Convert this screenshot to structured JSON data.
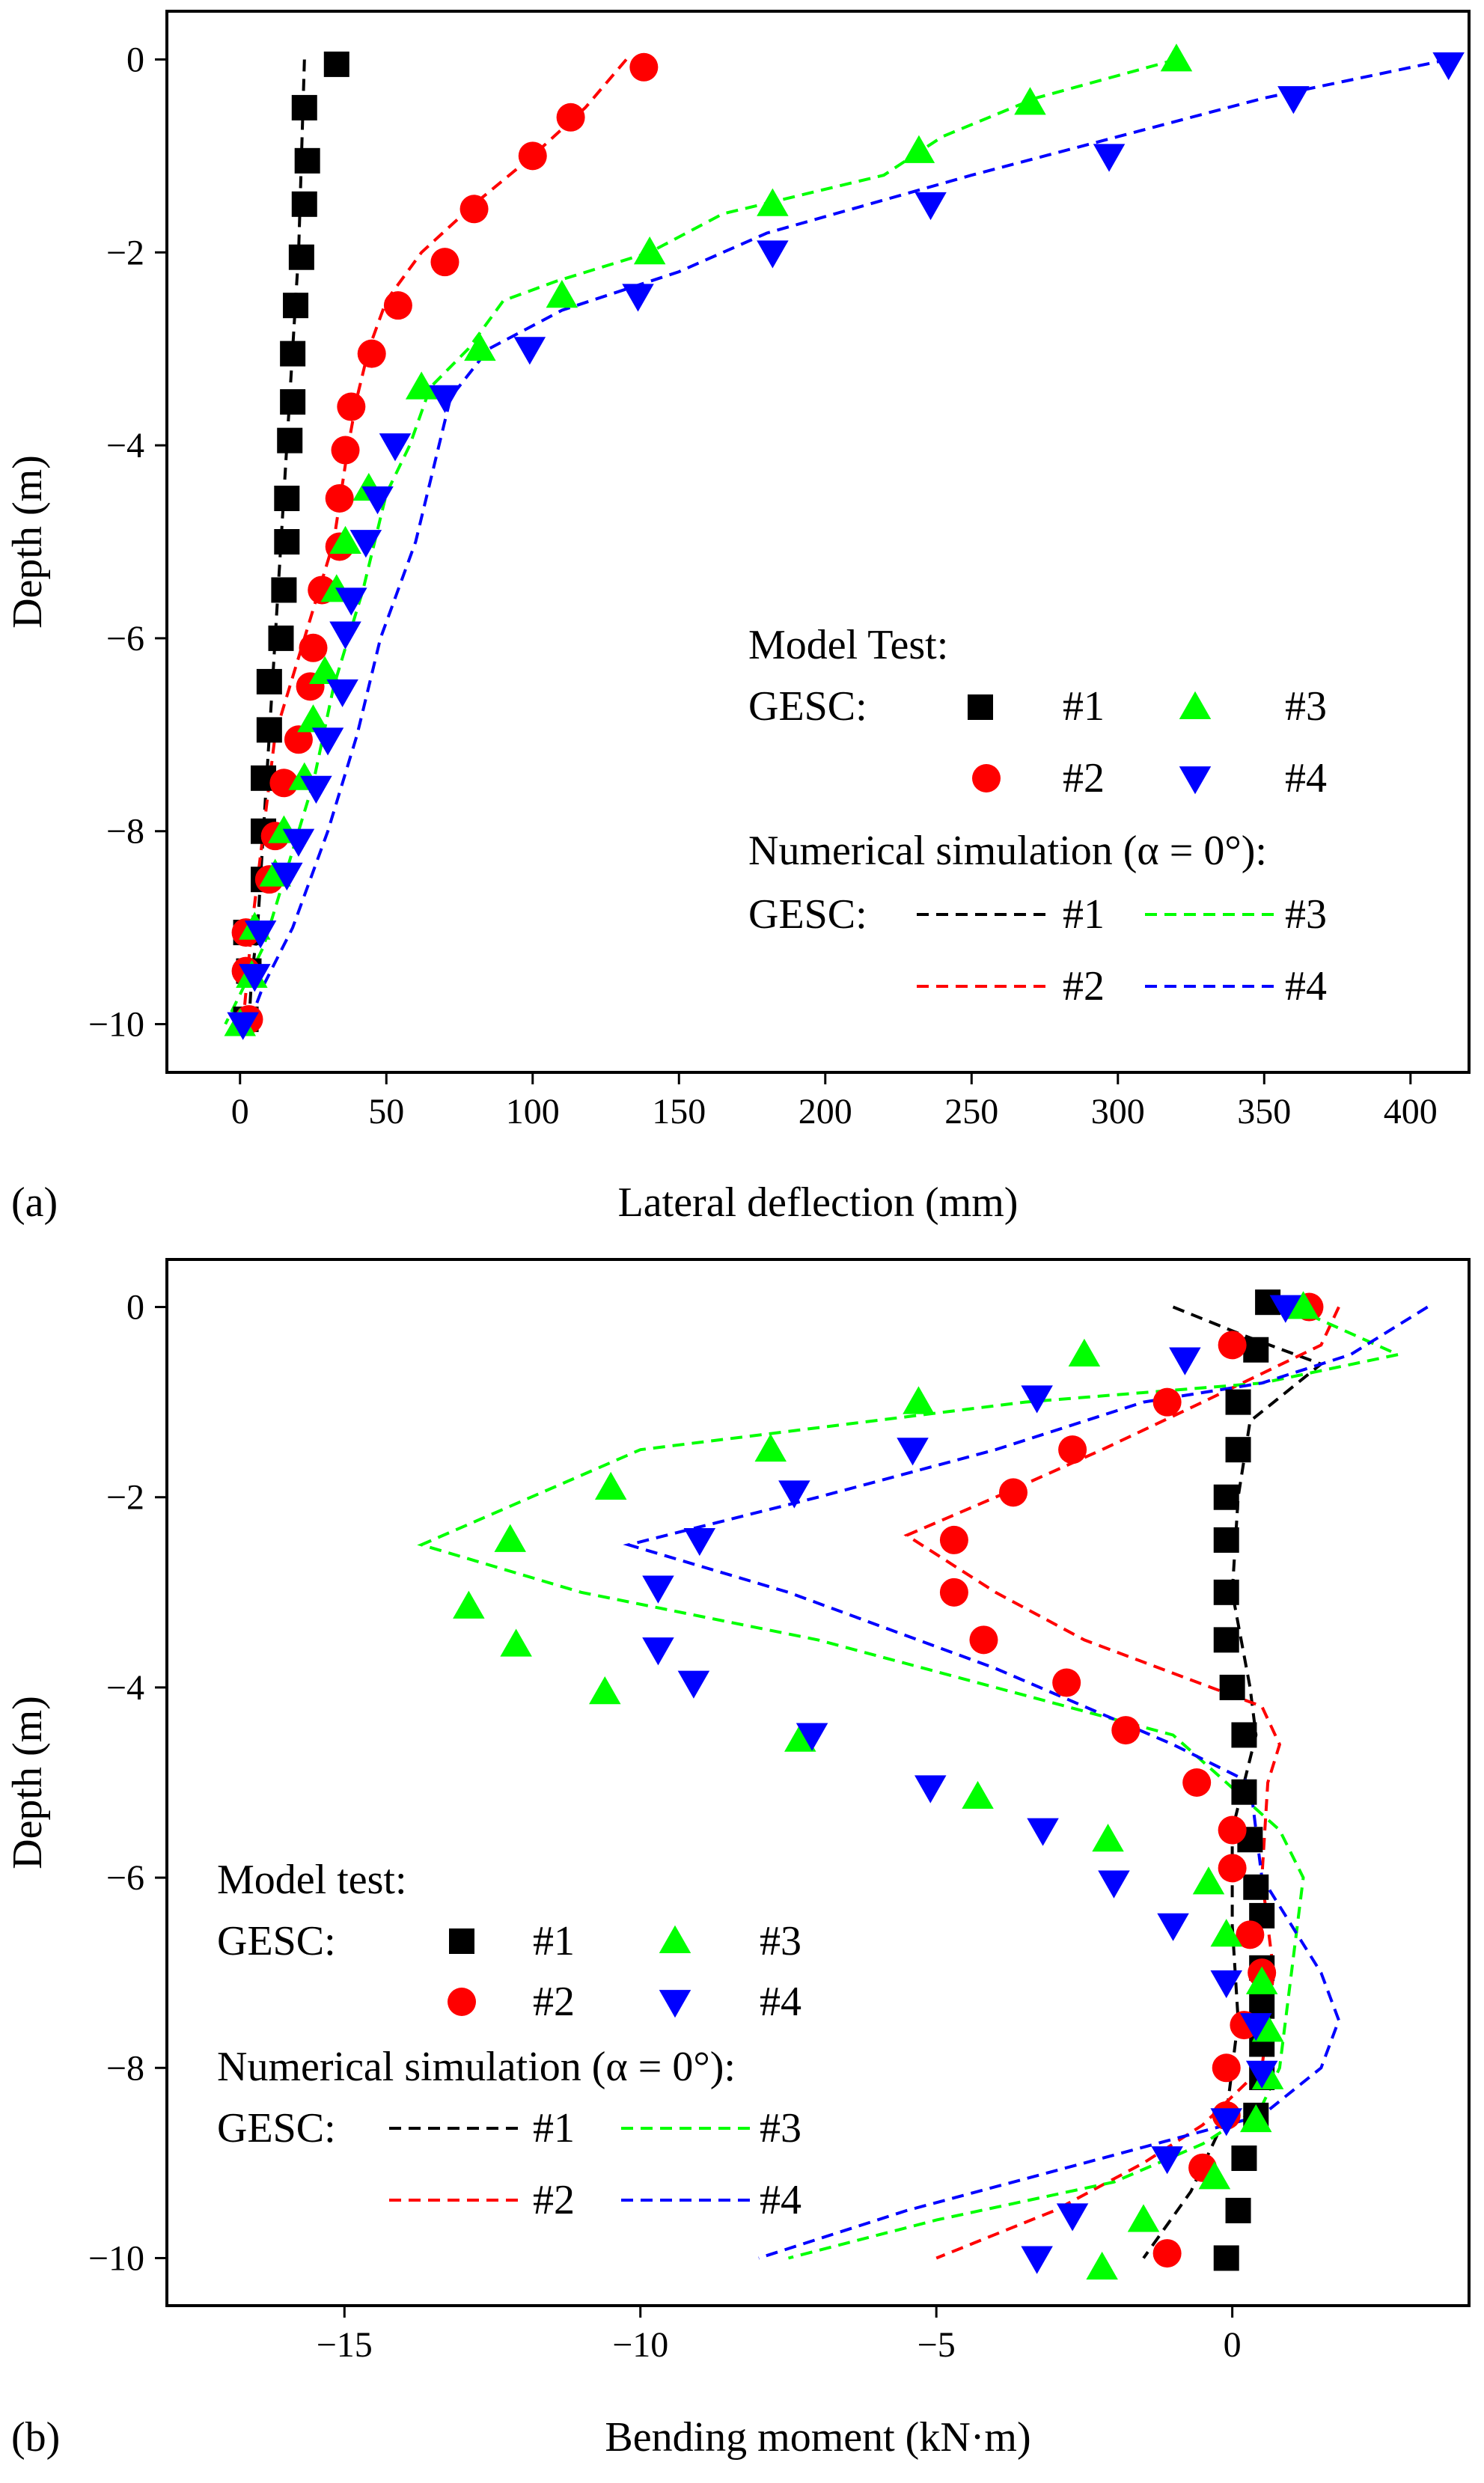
{
  "chart_data": [
    {
      "type": "scatter",
      "panel_label": "(a)",
      "xlabel": "Lateral deflection (mm)",
      "ylabel": "Depth (m)",
      "xlim": [
        -25,
        420
      ],
      "ylim": [
        -10.5,
        0.5
      ],
      "xticks": [
        0,
        50,
        100,
        150,
        200,
        250,
        300,
        350,
        400
      ],
      "yticks": [
        0,
        -2,
        -4,
        -6,
        -8,
        -10
      ],
      "legend": {
        "position": "lower-right",
        "model_title": "Model Test:",
        "group_label": "GESC:",
        "sim_title": "Numerical simulation (α = 0°):",
        "entries": [
          "#1",
          "#2",
          "#3",
          "#4"
        ]
      },
      "series": [
        {
          "name": "#1",
          "kind": "test",
          "marker": "square",
          "color": "#000000",
          "x": [
            33,
            22,
            23,
            22,
            21,
            19,
            18,
            18,
            17,
            16,
            16,
            15,
            14,
            10,
            10,
            8,
            8,
            8,
            2,
            3,
            2
          ],
          "y": [
            -0.05,
            -0.5,
            -1.05,
            -1.5,
            -2.05,
            -2.55,
            -3.05,
            -3.55,
            -3.95,
            -4.55,
            -5.0,
            -5.5,
            -6.0,
            -6.45,
            -6.95,
            -7.45,
            -8.0,
            -8.5,
            -9.05,
            -9.45,
            -9.95
          ]
        },
        {
          "name": "#2",
          "kind": "test",
          "marker": "circle",
          "color": "#ff0000",
          "x": [
            138,
            113,
            100,
            80,
            70,
            54,
            45,
            38,
            36,
            34,
            34,
            28,
            25,
            24,
            20,
            15,
            12,
            10,
            2,
            2,
            3
          ],
          "y": [
            -0.08,
            -0.6,
            -1.0,
            -1.55,
            -2.1,
            -2.55,
            -3.05,
            -3.6,
            -4.05,
            -4.55,
            -5.05,
            -5.5,
            -6.1,
            -6.5,
            -7.05,
            -7.5,
            -8.05,
            -8.5,
            -9.05,
            -9.45,
            -9.95
          ]
        },
        {
          "name": "#3",
          "kind": "test",
          "marker": "triangle-up",
          "color": "#00ff00",
          "x": [
            320,
            270,
            232,
            182,
            140,
            110,
            82,
            62,
            44,
            36,
            33,
            29,
            25,
            22,
            15,
            12,
            5,
            4,
            0
          ],
          "y": [
            0.0,
            -0.45,
            -0.95,
            -1.5,
            -2.0,
            -2.45,
            -3.0,
            -3.4,
            -4.45,
            -5.0,
            -5.5,
            -6.35,
            -6.85,
            -7.45,
            -8.0,
            -8.45,
            -9.0,
            -9.5,
            -10.0
          ]
        },
        {
          "name": "#4",
          "kind": "test",
          "marker": "triangle-down",
          "color": "#0000ff",
          "x": [
            413,
            360,
            297,
            236,
            182,
            136,
            99,
            70,
            53,
            47,
            43,
            38,
            36,
            35,
            30,
            26,
            20,
            16,
            7,
            5,
            1
          ],
          "y": [
            -0.05,
            -0.4,
            -1.0,
            -1.5,
            -2.0,
            -2.45,
            -3.0,
            -3.5,
            -4.0,
            -4.55,
            -5.0,
            -5.6,
            -5.95,
            -6.55,
            -7.05,
            -7.55,
            -8.1,
            -8.45,
            -9.05,
            -9.5,
            -10.0
          ]
        },
        {
          "name": "#1",
          "kind": "simulation",
          "color": "#000000",
          "x": [
            22,
            21,
            20,
            18,
            16,
            14,
            12,
            10,
            8,
            6,
            4,
            3
          ],
          "y": [
            0,
            -1,
            -2,
            -3,
            -4,
            -5,
            -6,
            -7,
            -8,
            -9,
            -9.5,
            -10
          ]
        },
        {
          "name": "#2",
          "kind": "simulation",
          "color": "#ff0000",
          "x": [
            132,
            118,
            100,
            80,
            62,
            50,
            44,
            40,
            37,
            32,
            27,
            22,
            17,
            12,
            8,
            4,
            1
          ],
          "y": [
            0,
            -0.5,
            -1,
            -1.5,
            -2,
            -2.5,
            -3,
            -3.5,
            -4,
            -5,
            -5.5,
            -6,
            -6.5,
            -7,
            -8,
            -9,
            -10
          ]
        },
        {
          "name": "#3",
          "kind": "simulation",
          "color": "#00ff00",
          "x": [
            320,
            272,
            240,
            220,
            165,
            140,
            108,
            90,
            78,
            65,
            58,
            50,
            42,
            32,
            25,
            15,
            8,
            -5
          ],
          "y": [
            0,
            -0.4,
            -0.8,
            -1.2,
            -1.6,
            -2.0,
            -2.3,
            -2.5,
            -3.0,
            -3.4,
            -4.0,
            -4.5,
            -5.5,
            -6.5,
            -7.5,
            -8.5,
            -9.2,
            -10
          ]
        },
        {
          "name": "#4",
          "kind": "simulation",
          "color": "#0000ff",
          "x": [
            413,
            350,
            300,
            250,
            180,
            150,
            110,
            85,
            72,
            68,
            60,
            48,
            40,
            30,
            18,
            8,
            3
          ],
          "y": [
            0,
            -0.4,
            -0.8,
            -1.2,
            -1.8,
            -2.2,
            -2.6,
            -3.0,
            -3.5,
            -4.0,
            -5.0,
            -6.0,
            -7.0,
            -8.0,
            -9.0,
            -9.6,
            -10
          ]
        }
      ]
    },
    {
      "type": "scatter",
      "panel_label": "(b)",
      "xlabel": "Bending moment (kN·m)",
      "ylabel": "Depth (m)",
      "xlim": [
        -18,
        4
      ],
      "ylim": [
        -10.5,
        0.5
      ],
      "xticks": [
        -15,
        -10,
        -5,
        0
      ],
      "yticks": [
        0,
        -2,
        -4,
        -6,
        -8,
        -10
      ],
      "legend": {
        "position": "lower-left",
        "model_title": "Model test:",
        "group_label": "GESC:",
        "sim_title": "Numerical simulation (α = 0°):",
        "entries": [
          "#1",
          "#2",
          "#3",
          "#4"
        ]
      },
      "series": [
        {
          "name": "#1",
          "kind": "test",
          "marker": "square",
          "color": "#000000",
          "x": [
            0.6,
            0.4,
            0.1,
            0.1,
            -0.1,
            -0.1,
            -0.1,
            -0.1,
            0.0,
            0.2,
            0.2,
            0.3,
            0.4,
            0.5,
            0.5,
            0.5,
            0.5,
            0.5,
            0.4,
            0.2,
            0.1,
            -0.1
          ],
          "y": [
            0.05,
            -0.45,
            -1.0,
            -1.5,
            -2.0,
            -2.45,
            -3.0,
            -3.5,
            -4.0,
            -4.5,
            -5.1,
            -5.6,
            -6.1,
            -6.4,
            -6.95,
            -7.35,
            -7.75,
            -8.1,
            -8.5,
            -8.95,
            -9.5,
            -10.0
          ]
        },
        {
          "name": "#2",
          "kind": "test",
          "marker": "circle",
          "color": "#ff0000",
          "x": [
            1.3,
            0.0,
            -1.1,
            -2.7,
            -3.7,
            -4.7,
            -4.7,
            -4.2,
            -2.8,
            -1.8,
            -0.6,
            0.0,
            0.0,
            0.3,
            0.5,
            0.2,
            -0.1,
            -0.1,
            -0.5,
            -1.1
          ],
          "y": [
            0.0,
            -0.4,
            -1.0,
            -1.5,
            -1.95,
            -2.45,
            -3.0,
            -3.5,
            -3.95,
            -4.45,
            -5.0,
            -5.5,
            -5.9,
            -6.6,
            -7.0,
            -7.55,
            -8.0,
            -8.5,
            -9.05,
            -9.95
          ]
        },
        {
          "name": "#3",
          "kind": "test",
          "marker": "triangle-up",
          "color": "#00ff00",
          "x": [
            1.2,
            -2.5,
            -5.3,
            -7.8,
            -10.5,
            -12.2,
            -12.9,
            -12.1,
            -10.6,
            -7.3,
            -4.3,
            -2.1,
            -0.4,
            -0.1,
            0.5,
            0.6,
            0.6,
            0.4,
            -0.3,
            -1.5,
            -2.2
          ],
          "y": [
            0.0,
            -0.5,
            -1.0,
            -1.5,
            -1.9,
            -2.45,
            -3.15,
            -3.55,
            -4.05,
            -4.55,
            -5.15,
            -5.6,
            -6.05,
            -6.6,
            -7.1,
            -7.6,
            -8.1,
            -8.55,
            -9.15,
            -9.6,
            -10.1
          ]
        },
        {
          "name": "#4",
          "kind": "test",
          "marker": "triangle-down",
          "color": "#0000ff",
          "x": [
            0.9,
            -0.8,
            -3.3,
            -5.4,
            -7.4,
            -9.0,
            -9.7,
            -9.7,
            -9.1,
            -7.1,
            -5.1,
            -3.2,
            -2.0,
            -1.0,
            -0.1,
            0.4,
            0.5,
            -0.1,
            -1.1,
            -2.7,
            -3.3
          ],
          "y": [
            0.0,
            -0.55,
            -0.95,
            -1.5,
            -1.95,
            -2.45,
            -2.95,
            -3.6,
            -3.95,
            -4.5,
            -5.05,
            -5.5,
            -6.05,
            -6.5,
            -7.1,
            -7.55,
            -8.05,
            -8.55,
            -8.95,
            -9.55,
            -10.0
          ]
        },
        {
          "name": "#1",
          "kind": "simulation",
          "color": "#000000",
          "x": [
            -1.0,
            0.2,
            1.5,
            0.3,
            0.1,
            0.0,
            0.3,
            0.4,
            0.2,
            0.0,
            0.0,
            0.1,
            0.0,
            -0.1,
            -0.7,
            -1.5
          ],
          "y": [
            0,
            -0.3,
            -0.6,
            -1.2,
            -2.0,
            -3.0,
            -4.0,
            -4.5,
            -5.0,
            -5.5,
            -6.5,
            -7.5,
            -8.0,
            -8.5,
            -9.3,
            -10
          ]
        },
        {
          "name": "#2",
          "kind": "simulation",
          "color": "#ff0000",
          "x": [
            1.8,
            1.5,
            -0.5,
            -2.2,
            -4.0,
            -5.5,
            -4.0,
            -2.5,
            0.5,
            0.8,
            0.6,
            0.5,
            0.7,
            0.5,
            -0.5,
            -1.5,
            -3.0,
            -5.0
          ],
          "y": [
            0,
            -0.4,
            -1.0,
            -1.5,
            -2.0,
            -2.4,
            -3.0,
            -3.5,
            -4.2,
            -4.6,
            -5.0,
            -6.0,
            -7.0,
            -8.0,
            -8.6,
            -9.0,
            -9.5,
            -10
          ]
        },
        {
          "name": "#3",
          "kind": "simulation",
          "color": "#00ff00",
          "x": [
            1.0,
            2.8,
            0.5,
            -3.5,
            -10.0,
            -13.7,
            -11.0,
            -7.0,
            -1.0,
            0.8,
            1.2,
            1.0,
            0.8,
            0.5,
            -0.5,
            -2.0,
            -5.0,
            -7.5
          ],
          "y": [
            0,
            -0.5,
            -0.8,
            -1.0,
            -1.5,
            -2.5,
            -3.0,
            -3.5,
            -4.5,
            -5.5,
            -6.0,
            -7.0,
            -8.0,
            -8.4,
            -8.8,
            -9.2,
            -9.6,
            -10
          ]
        },
        {
          "name": "#4",
          "kind": "simulation",
          "color": "#0000ff",
          "x": [
            3.3,
            2.0,
            0.5,
            -1.5,
            -4.0,
            -7.0,
            -10.2,
            -7.5,
            -4.0,
            -1.0,
            0.3,
            0.5,
            1.5,
            1.8,
            1.5,
            0.5,
            -2.5,
            -5.5,
            -8.0
          ],
          "y": [
            0,
            -0.5,
            -0.8,
            -1.0,
            -1.5,
            -2.0,
            -2.5,
            -3.0,
            -3.8,
            -4.6,
            -5.0,
            -6.0,
            -7.0,
            -7.5,
            -8.0,
            -8.5,
            -9.0,
            -9.5,
            -10
          ]
        }
      ]
    }
  ]
}
